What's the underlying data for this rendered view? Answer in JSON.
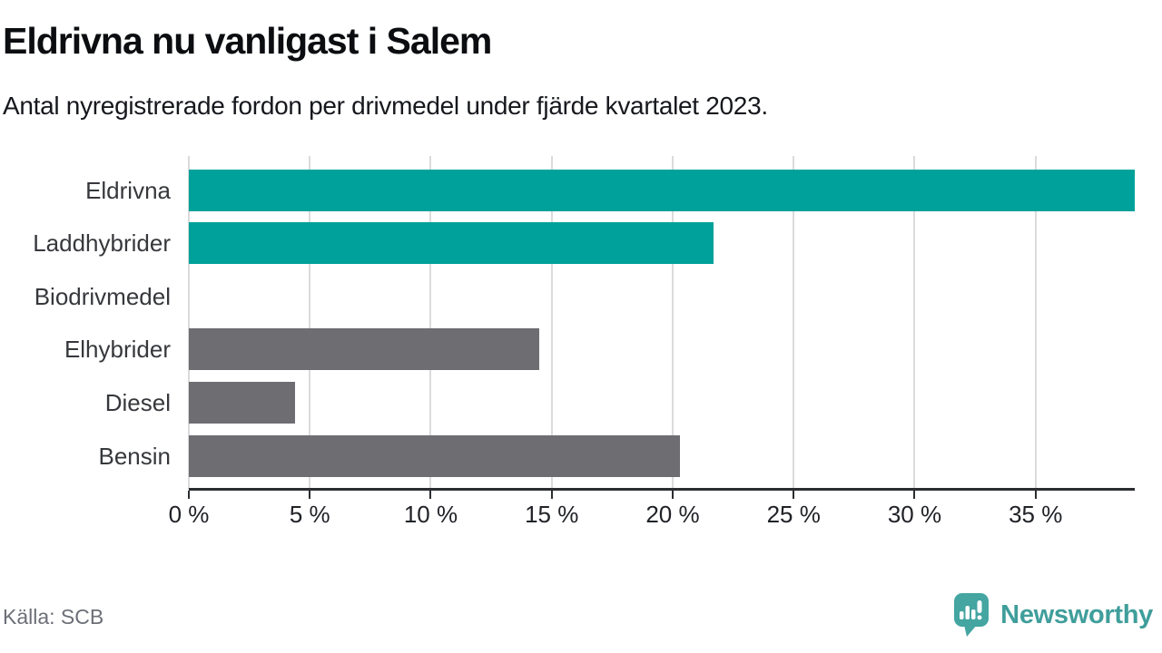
{
  "title": "Eldrivna nu vanligast i Salem",
  "subtitle": "Antal nyregistrerade fordon per drivmedel under fjärde kvartalet 2023.",
  "source": "Källa: SCB",
  "brand": {
    "name": "Newsworthy",
    "icon": "bar-chart-speech-bubble-icon",
    "icon_color": "#44a5a1",
    "wordmark_color": "#3f9e9b"
  },
  "colors": {
    "highlight_bar": "#00a19a",
    "default_bar": "#6d6d72",
    "gridline": "#dbdbdb",
    "axis": "#2b2d31",
    "background": "#ffffff"
  },
  "chart_data": {
    "type": "bar",
    "orientation": "horizontal",
    "title": "Eldrivna nu vanligast i Salem",
    "subtitle": "Antal nyregistrerade fordon per drivmedel under fjärde kvartalet 2023.",
    "categories": [
      "Eldrivna",
      "Laddhybrider",
      "Biodrivmedel",
      "Elhybrider",
      "Diesel",
      "Bensin"
    ],
    "values": [
      39.1,
      21.7,
      0,
      14.5,
      4.4,
      20.3
    ],
    "unit": "%",
    "bar_colors": [
      "#00a19a",
      "#00a19a",
      "#6d6d72",
      "#6d6d72",
      "#6d6d72",
      "#6d6d72"
    ],
    "xlim": [
      0,
      39.1
    ],
    "x_tick_values": [
      0,
      5,
      10,
      15,
      20,
      25,
      30,
      35
    ],
    "x_tick_labels": [
      "0 %",
      "5 %",
      "10 %",
      "15 %",
      "20 %",
      "25 %",
      "30 %",
      "35 %"
    ],
    "grid": "vertical",
    "legend": "none",
    "data_labels": "none"
  }
}
